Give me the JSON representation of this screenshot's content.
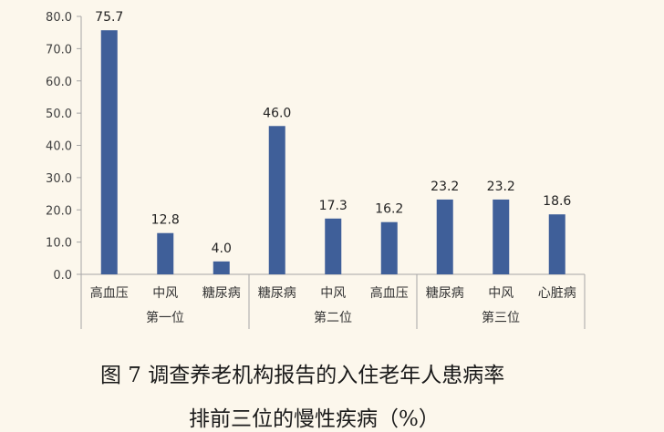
{
  "chart_data": {
    "type": "bar",
    "ylim": [
      0,
      80
    ],
    "yticks": [
      "0.0",
      "10.0",
      "20.0",
      "30.0",
      "40.0",
      "50.0",
      "60.0",
      "70.0",
      "80.0"
    ],
    "groups": [
      {
        "name": "第一位",
        "categories": [
          "高血压",
          "中风",
          "糖尿病"
        ],
        "values": [
          75.7,
          12.8,
          4.0
        ],
        "labels": [
          "75.7",
          "12.8",
          "4.0"
        ]
      },
      {
        "name": "第二位",
        "categories": [
          "糖尿病",
          "中风",
          "高血压"
        ],
        "values": [
          46.0,
          17.3,
          16.2
        ],
        "labels": [
          "46.0",
          "17.3",
          "16.2"
        ]
      },
      {
        "name": "第三位",
        "categories": [
          "糖尿病",
          "中风",
          "心脏病"
        ],
        "values": [
          23.2,
          23.2,
          18.6
        ],
        "labels": [
          "23.2",
          "23.2",
          "18.6"
        ]
      }
    ],
    "bar_color": "#3f5f99",
    "grid": false
  },
  "caption": {
    "line1": "图 7  调查养老机构报告的入住老年人患病率",
    "line2": "排前三位的慢性疾病（%）"
  }
}
